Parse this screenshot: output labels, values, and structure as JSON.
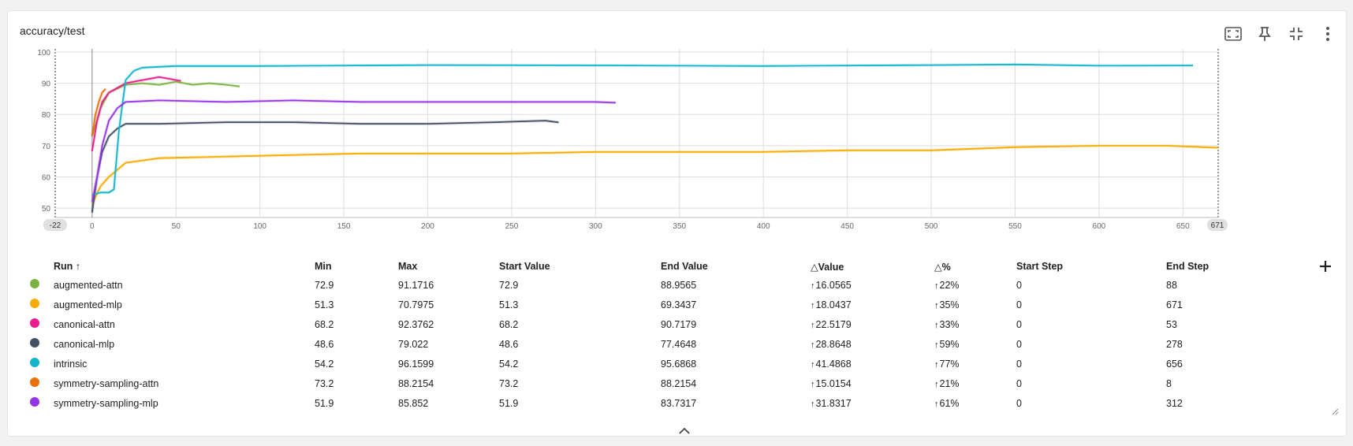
{
  "card": {
    "title": "accuracy/test",
    "toolbar": [
      {
        "name": "fullscreen-button",
        "icon": "fullscreen-icon"
      },
      {
        "name": "pin-button",
        "icon": "pin-icon"
      },
      {
        "name": "collapse-chart-button",
        "icon": "collapse-icon"
      },
      {
        "name": "more-options-button",
        "icon": "more-vert-icon"
      }
    ]
  },
  "chart_data": {
    "type": "line",
    "title": "accuracy/test",
    "xlabel": "",
    "ylabel": "",
    "xlim": [
      -22,
      671
    ],
    "ylim": [
      47,
      101
    ],
    "xticks": [
      0,
      50,
      100,
      150,
      200,
      250,
      300,
      350,
      400,
      450,
      500,
      550,
      600,
      650
    ],
    "yticks": [
      50,
      60,
      70,
      80,
      90,
      100
    ],
    "x_range_labels": {
      "min": "-22",
      "max": "671"
    },
    "grid": true,
    "series": [
      {
        "name": "augmented-attn",
        "color": "#7cb342",
        "x": [
          0,
          5,
          10,
          20,
          30,
          40,
          50,
          60,
          70,
          80,
          88
        ],
        "y": [
          72.9,
          82,
          87,
          89.5,
          90,
          89.5,
          90.5,
          89.5,
          90,
          89.5,
          88.9565
        ]
      },
      {
        "name": "augmented-mlp",
        "color": "#f9ab00",
        "x": [
          0,
          5,
          10,
          20,
          40,
          80,
          120,
          160,
          200,
          250,
          300,
          350,
          400,
          450,
          500,
          550,
          600,
          640,
          671
        ],
        "y": [
          51.3,
          57,
          60,
          64.5,
          66,
          66.5,
          67,
          67.5,
          67.5,
          67.5,
          68,
          68,
          68,
          68.5,
          68.5,
          69.5,
          70,
          70,
          69.3437
        ]
      },
      {
        "name": "canonical-attn",
        "color": "#e91e8c",
        "x": [
          0,
          3,
          6,
          10,
          20,
          30,
          40,
          53
        ],
        "y": [
          68.2,
          78,
          84,
          87,
          90,
          91,
          92,
          90.7179
        ]
      },
      {
        "name": "canonical-mlp",
        "color": "#425066",
        "x": [
          0,
          3,
          6,
          10,
          15,
          20,
          40,
          80,
          120,
          160,
          200,
          240,
          270,
          278
        ],
        "y": [
          48.6,
          60,
          68,
          73,
          75.5,
          77,
          77,
          77.5,
          77.5,
          77,
          77,
          77.5,
          78,
          77.4648
        ]
      },
      {
        "name": "intrinsic",
        "color": "#12b5cb",
        "x": [
          0,
          5,
          10,
          13,
          16,
          20,
          25,
          30,
          50,
          100,
          200,
          300,
          400,
          500,
          550,
          600,
          656
        ],
        "y": [
          54.2,
          55,
          55,
          56,
          75,
          91,
          94,
          95,
          95.5,
          95.5,
          95.8,
          95.7,
          95.5,
          95.8,
          96,
          95.6,
          95.6868
        ]
      },
      {
        "name": "symmetry-sampling-attn",
        "color": "#e8710a",
        "x": [
          0,
          2,
          4,
          6,
          8
        ],
        "y": [
          73.2,
          80,
          84,
          87,
          88.2154
        ]
      },
      {
        "name": "symmetry-sampling-mlp",
        "color": "#9334e6",
        "x": [
          0,
          3,
          6,
          10,
          15,
          20,
          40,
          80,
          120,
          160,
          200,
          250,
          300,
          312
        ],
        "y": [
          51.9,
          60,
          70,
          78,
          82,
          84,
          84.5,
          84,
          84.5,
          84,
          84,
          84,
          84,
          83.7317
        ]
      }
    ]
  },
  "table": {
    "columns": [
      "Run",
      "Min",
      "Max",
      "Start Value",
      "End Value",
      "Value",
      "%",
      "Start Step",
      "End Step"
    ],
    "sort_indicator": "↑",
    "rows": [
      {
        "run": "augmented-attn",
        "color": "#7cb342",
        "min": "72.9",
        "max": "91.1716",
        "start_value": "72.9",
        "end_value": "88.9565",
        "delta_value": "16.0565",
        "delta_pct": "22%",
        "start_step": "0",
        "end_step": "88"
      },
      {
        "run": "augmented-mlp",
        "color": "#f9ab00",
        "min": "51.3",
        "max": "70.7975",
        "start_value": "51.3",
        "end_value": "69.3437",
        "delta_value": "18.0437",
        "delta_pct": "35%",
        "start_step": "0",
        "end_step": "671"
      },
      {
        "run": "canonical-attn",
        "color": "#e91e8c",
        "min": "68.2",
        "max": "92.3762",
        "start_value": "68.2",
        "end_value": "90.7179",
        "delta_value": "22.5179",
        "delta_pct": "33%",
        "start_step": "0",
        "end_step": "53"
      },
      {
        "run": "canonical-mlp",
        "color": "#425066",
        "min": "48.6",
        "max": "79.022",
        "start_value": "48.6",
        "end_value": "77.4648",
        "delta_value": "28.8648",
        "delta_pct": "59%",
        "start_step": "0",
        "end_step": "278"
      },
      {
        "run": "intrinsic",
        "color": "#12b5cb",
        "min": "54.2",
        "max": "96.1599",
        "start_value": "54.2",
        "end_value": "95.6868",
        "delta_value": "41.4868",
        "delta_pct": "77%",
        "start_step": "0",
        "end_step": "656"
      },
      {
        "run": "symmetry-sampling-attn",
        "color": "#e8710a",
        "min": "73.2",
        "max": "88.2154",
        "start_value": "73.2",
        "end_value": "88.2154",
        "delta_value": "15.0154",
        "delta_pct": "21%",
        "start_step": "0",
        "end_step": "8"
      },
      {
        "run": "symmetry-sampling-mlp",
        "color": "#9334e6",
        "min": "51.9",
        "max": "85.852",
        "start_value": "51.9",
        "end_value": "83.7317",
        "delta_value": "31.8317",
        "delta_pct": "61%",
        "start_step": "0",
        "end_step": "312"
      }
    ]
  }
}
